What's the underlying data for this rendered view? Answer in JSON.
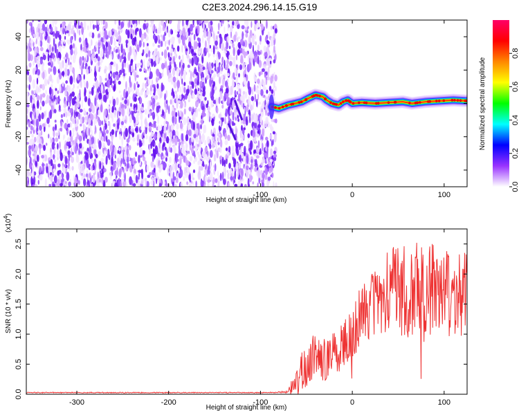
{
  "title": "C2E3.2024.296.14.15.G19",
  "chart_data": [
    {
      "type": "heatmap",
      "xlabel": "Height of straight line (km)",
      "ylabel": "Frequency (Hz)",
      "xlim": [
        -355,
        125
      ],
      "ylim": [
        -50,
        50
      ],
      "x_ticks": [
        -300,
        -200,
        -100,
        0,
        100
      ],
      "y_ticks": [
        -40,
        -20,
        0,
        20,
        40
      ],
      "noise_region_x": [
        -355,
        -83
      ],
      "colorbar": {
        "label": "Normalized spectral amplitude",
        "range": [
          0,
          1
        ],
        "ticks": [
          "0.0",
          "0.2",
          "0.4",
          "0.6",
          "0.8"
        ],
        "colors": [
          "#ffffff",
          "#9933ff",
          "#0000ff",
          "#00ffff",
          "#00ff00",
          "#ffff00",
          "#ff8800",
          "#ff0000",
          "#ff0066"
        ]
      },
      "ridge": {
        "x": [
          -88,
          -80,
          -75,
          -70,
          -62,
          -55,
          -48,
          -40,
          -32,
          -28,
          -22,
          -15,
          -10,
          -5,
          0,
          10,
          25,
          40,
          55,
          65,
          80,
          95,
          110,
          125
        ],
        "y": [
          -2,
          -3,
          -2,
          -1,
          0,
          1,
          3,
          5,
          4,
          2,
          0,
          -1,
          1,
          2,
          0,
          0.5,
          0,
          0.5,
          1,
          0,
          1,
          1.5,
          2,
          1.5
        ]
      }
    },
    {
      "type": "line",
      "xlabel": "Height of straight line (km)",
      "ylabel": "SNR (10 * v/v)",
      "scale_label": "(x10",
      "scale_exp": "4",
      "xlim": [
        -355,
        125
      ],
      "ylim": [
        0,
        2.75
      ],
      "x_ticks": [
        -300,
        -200,
        -100,
        0,
        100
      ],
      "y_ticks": [
        "0.0",
        "0.5",
        "1.0",
        "1.5",
        "2.0",
        "2.5"
      ],
      "color": "#ee3333",
      "x": [
        -355,
        -250,
        -150,
        -100,
        -70,
        -62,
        -55,
        -45,
        -35,
        -25,
        -15,
        -5,
        5,
        15,
        25,
        35,
        45,
        55,
        65,
        75,
        85,
        95,
        105,
        115,
        125
      ],
      "y": [
        0.02,
        0.02,
        0.02,
        0.02,
        0.03,
        0.2,
        0.35,
        0.6,
        0.6,
        0.6,
        0.75,
        0.9,
        1.2,
        1.4,
        1.55,
        1.65,
        1.7,
        1.75,
        1.7,
        1.7,
        1.75,
        1.7,
        1.6,
        1.65,
        1.7
      ],
      "spread": [
        0,
        0,
        0,
        0,
        0.02,
        0.3,
        0.35,
        0.4,
        0.4,
        0.35,
        0.4,
        0.4,
        0.5,
        0.55,
        0.6,
        0.7,
        0.75,
        0.8,
        0.85,
        0.85,
        0.85,
        0.8,
        0.8,
        0.75,
        0.7
      ]
    }
  ]
}
